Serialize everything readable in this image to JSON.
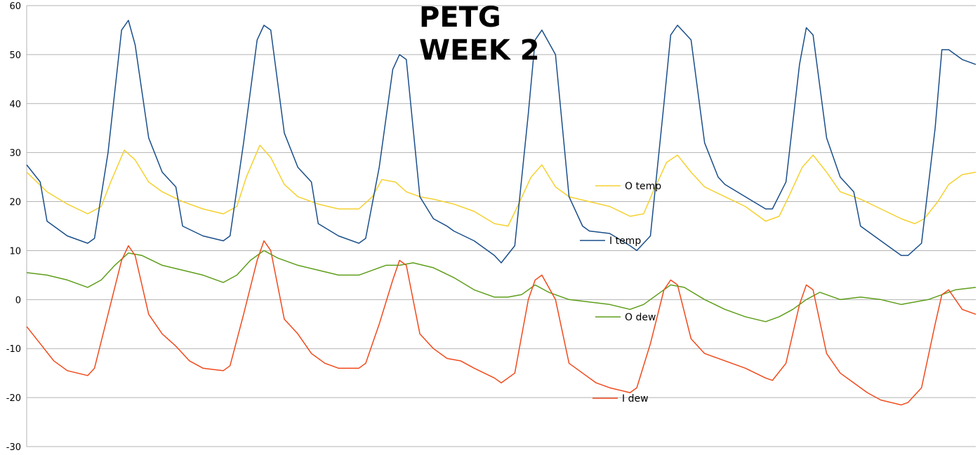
{
  "chart_data": {
    "type": "line",
    "title_lines": [
      "PETG",
      "WEEK 2"
    ],
    "xlabel": "",
    "ylabel": "",
    "ylim": [
      -30,
      60
    ],
    "yticks": [
      60,
      50,
      40,
      30,
      20,
      10,
      0,
      -10,
      -20,
      -30
    ],
    "grid": true,
    "legend": "inline",
    "x_range": [
      0,
      7
    ],
    "series": [
      {
        "name": "O temp",
        "color": "#f5d130",
        "x": [
          0,
          0.15,
          0.3,
          0.45,
          0.55,
          0.62,
          0.72,
          0.8,
          0.9,
          1.0,
          1.15,
          1.3,
          1.45,
          1.55,
          1.62,
          1.72,
          1.8,
          1.9,
          2.0,
          2.15,
          2.3,
          2.45,
          2.55,
          2.62,
          2.72,
          2.8,
          2.9,
          3.0,
          3.15,
          3.3,
          3.45,
          3.55,
          3.62,
          3.72,
          3.8,
          3.9,
          4.0,
          4.15,
          4.3,
          4.45,
          4.55,
          4.62,
          4.72,
          4.8,
          4.9,
          5.0,
          5.15,
          5.3,
          5.45,
          5.55,
          5.62,
          5.72,
          5.8,
          5.9,
          6.0,
          6.15,
          6.3,
          6.45,
          6.55,
          6.62,
          6.72,
          6.8,
          6.9,
          7.0
        ],
        "y": [
          26,
          22,
          19.5,
          17.5,
          19,
          24,
          30.5,
          28.5,
          24,
          22,
          20,
          18.5,
          17.5,
          19,
          25,
          31.5,
          29,
          23.5,
          21,
          19.5,
          18.5,
          18.5,
          21,
          24.5,
          24,
          22,
          21,
          20.5,
          19.5,
          18,
          15.5,
          15,
          19,
          25,
          27.5,
          23,
          21,
          20,
          19,
          17,
          17.5,
          22,
          28,
          29.5,
          26,
          23,
          21,
          19,
          16,
          17,
          21,
          27,
          29.5,
          26,
          22,
          20.5,
          18.5,
          16.5,
          15.5,
          16.5,
          20,
          23.5,
          25.5,
          26
        ]
      },
      {
        "name": "I temp",
        "color": "#1a4e8a",
        "x": [
          0,
          0.1,
          0.15,
          0.3,
          0.45,
          0.5,
          0.6,
          0.7,
          0.75,
          0.8,
          0.9,
          1.0,
          1.1,
          1.15,
          1.3,
          1.45,
          1.5,
          1.6,
          1.7,
          1.75,
          1.8,
          1.9,
          2.0,
          2.1,
          2.15,
          2.3,
          2.45,
          2.5,
          2.6,
          2.7,
          2.75,
          2.8,
          2.9,
          3.0,
          3.1,
          3.15,
          3.3,
          3.45,
          3.5,
          3.6,
          3.7,
          3.75,
          3.8,
          3.9,
          4.0,
          4.1,
          4.15,
          4.3,
          4.45,
          4.5,
          4.6,
          4.7,
          4.75,
          4.8,
          4.9,
          5.0,
          5.1,
          5.15,
          5.3,
          5.45,
          5.5,
          5.6,
          5.7,
          5.75,
          5.8,
          5.9,
          6.0,
          6.1,
          6.15,
          6.3,
          6.45,
          6.5,
          6.6,
          6.7,
          6.75,
          6.8,
          6.9,
          7.0
        ],
        "y": [
          27.5,
          24,
          16,
          13,
          11.5,
          12.5,
          30,
          55,
          57,
          52,
          33,
          26,
          23,
          15,
          13,
          12,
          13,
          32,
          53,
          56,
          55,
          34,
          27,
          24,
          15.5,
          13,
          11.5,
          12.5,
          27,
          47,
          50,
          49,
          21,
          16.5,
          15,
          14,
          12,
          9,
          7.5,
          11,
          38,
          53,
          55,
          50,
          21,
          15,
          14,
          13.5,
          11,
          10,
          13,
          40,
          54,
          56,
          53,
          32,
          25,
          23.5,
          21,
          18.5,
          18.5,
          24,
          48,
          55.5,
          54,
          33,
          25,
          22,
          15,
          12,
          9,
          9,
          11.5,
          35,
          51,
          51,
          49,
          48
        ]
      },
      {
        "name": "O dew",
        "color": "#5e9e1a",
        "x": [
          0,
          0.15,
          0.3,
          0.45,
          0.55,
          0.65,
          0.75,
          0.85,
          1.0,
          1.15,
          1.3,
          1.45,
          1.55,
          1.65,
          1.75,
          1.85,
          2.0,
          2.15,
          2.3,
          2.45,
          2.55,
          2.65,
          2.75,
          2.85,
          3.0,
          3.15,
          3.3,
          3.45,
          3.55,
          3.65,
          3.75,
          3.85,
          4.0,
          4.15,
          4.3,
          4.45,
          4.55,
          4.65,
          4.75,
          4.85,
          5.0,
          5.15,
          5.3,
          5.45,
          5.55,
          5.65,
          5.75,
          5.85,
          6.0,
          6.15,
          6.3,
          6.45,
          6.55,
          6.65,
          6.75,
          6.85,
          7.0
        ],
        "y": [
          5.5,
          5,
          4,
          2.5,
          4,
          7,
          9.5,
          9,
          7,
          6,
          5,
          3.5,
          5,
          8,
          10,
          8.5,
          7,
          6,
          5,
          5,
          6,
          7,
          7,
          7.5,
          6.5,
          4.5,
          2,
          0.5,
          0.5,
          1,
          3,
          1.5,
          0,
          -0.5,
          -1,
          -2,
          -1,
          1,
          3,
          2.5,
          0,
          -2,
          -3.5,
          -4.5,
          -3.5,
          -2,
          0,
          1.5,
          0,
          0.5,
          0,
          -1,
          -0.5,
          0,
          1,
          2,
          2.5
        ]
      },
      {
        "name": "I dew",
        "color": "#f04a1c",
        "x": [
          0,
          0.1,
          0.2,
          0.3,
          0.45,
          0.5,
          0.6,
          0.7,
          0.75,
          0.8,
          0.9,
          1.0,
          1.1,
          1.2,
          1.3,
          1.45,
          1.5,
          1.6,
          1.7,
          1.75,
          1.8,
          1.9,
          2.0,
          2.1,
          2.2,
          2.3,
          2.45,
          2.5,
          2.6,
          2.7,
          2.75,
          2.8,
          2.9,
          3.0,
          3.1,
          3.2,
          3.3,
          3.45,
          3.5,
          3.6,
          3.7,
          3.75,
          3.8,
          3.9,
          4.0,
          4.1,
          4.2,
          4.3,
          4.45,
          4.5,
          4.6,
          4.7,
          4.75,
          4.8,
          4.9,
          5.0,
          5.1,
          5.2,
          5.3,
          5.45,
          5.5,
          5.6,
          5.7,
          5.75,
          5.8,
          5.9,
          6.0,
          6.1,
          6.2,
          6.3,
          6.45,
          6.5,
          6.6,
          6.7,
          6.75,
          6.8,
          6.9,
          7.0
        ],
        "y": [
          -5.5,
          -9,
          -12.5,
          -14.5,
          -15.5,
          -14,
          -3,
          8,
          11,
          9,
          -3,
          -7,
          -9.5,
          -12.5,
          -14,
          -14.5,
          -13.5,
          -3,
          8,
          12,
          10,
          -4,
          -7,
          -11,
          -13,
          -14,
          -14,
          -13,
          -5,
          4,
          8,
          7,
          -7,
          -10,
          -12,
          -12.5,
          -14,
          -16,
          -17,
          -15,
          0,
          4,
          5,
          0,
          -13,
          -15,
          -17,
          -18,
          -19,
          -18,
          -9,
          2,
          4,
          3,
          -8,
          -11,
          -12,
          -13,
          -14,
          -16,
          -16.5,
          -13,
          -1,
          3,
          2,
          -11,
          -15,
          -17,
          -19,
          -20.5,
          -21.5,
          -21,
          -18,
          -5,
          1,
          2,
          -2,
          -3
        ]
      }
    ]
  }
}
